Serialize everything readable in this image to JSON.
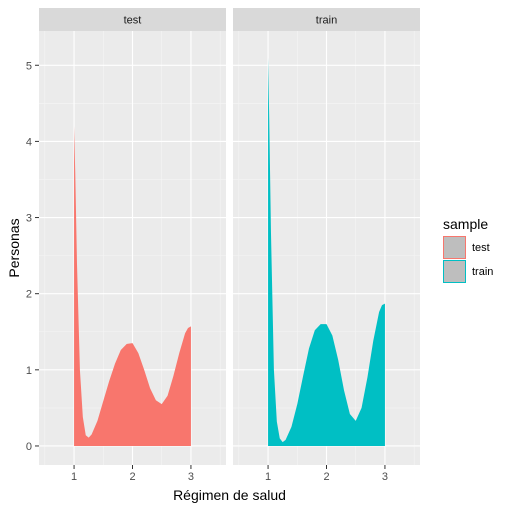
{
  "chart_data": {
    "type": "area",
    "xlabel": "Régimen de salud",
    "ylabel": "Personas",
    "xlim": [
      0.4,
      3.6
    ],
    "ylim": [
      -0.25,
      5.45
    ],
    "x_ticks": [
      1,
      2,
      3
    ],
    "y_ticks": [
      0,
      1,
      2,
      3,
      4,
      5
    ],
    "grid": true,
    "legend": {
      "title": "sample",
      "position": "right",
      "entries": [
        {
          "label": "test",
          "color": "#F8766D"
        },
        {
          "label": "train",
          "color": "#00BFC4"
        }
      ]
    },
    "panels": [
      {
        "strip": "test",
        "color": "#F8766D",
        "x": [
          1.0,
          1.02,
          1.05,
          1.1,
          1.15,
          1.2,
          1.25,
          1.3,
          1.4,
          1.5,
          1.6,
          1.7,
          1.8,
          1.9,
          2.0,
          2.1,
          2.2,
          2.3,
          2.4,
          2.5,
          2.6,
          2.7,
          2.8,
          2.9,
          2.95,
          3.0
        ],
        "y": [
          4.2,
          3.6,
          2.4,
          1.0,
          0.38,
          0.14,
          0.11,
          0.15,
          0.33,
          0.59,
          0.85,
          1.08,
          1.26,
          1.34,
          1.35,
          1.22,
          1.0,
          0.76,
          0.6,
          0.55,
          0.66,
          0.92,
          1.22,
          1.48,
          1.55,
          1.57
        ]
      },
      {
        "strip": "train",
        "color": "#00BFC4",
        "x": [
          1.0,
          1.02,
          1.05,
          1.1,
          1.15,
          1.2,
          1.25,
          1.3,
          1.4,
          1.5,
          1.6,
          1.7,
          1.8,
          1.9,
          2.0,
          2.1,
          2.2,
          2.3,
          2.4,
          2.5,
          2.6,
          2.7,
          2.8,
          2.9,
          2.95,
          3.0
        ],
        "y": [
          5.1,
          4.3,
          2.8,
          1.0,
          0.32,
          0.1,
          0.05,
          0.08,
          0.25,
          0.55,
          0.92,
          1.28,
          1.52,
          1.6,
          1.6,
          1.45,
          1.13,
          0.73,
          0.42,
          0.33,
          0.5,
          0.9,
          1.38,
          1.76,
          1.85,
          1.87
        ]
      }
    ]
  }
}
